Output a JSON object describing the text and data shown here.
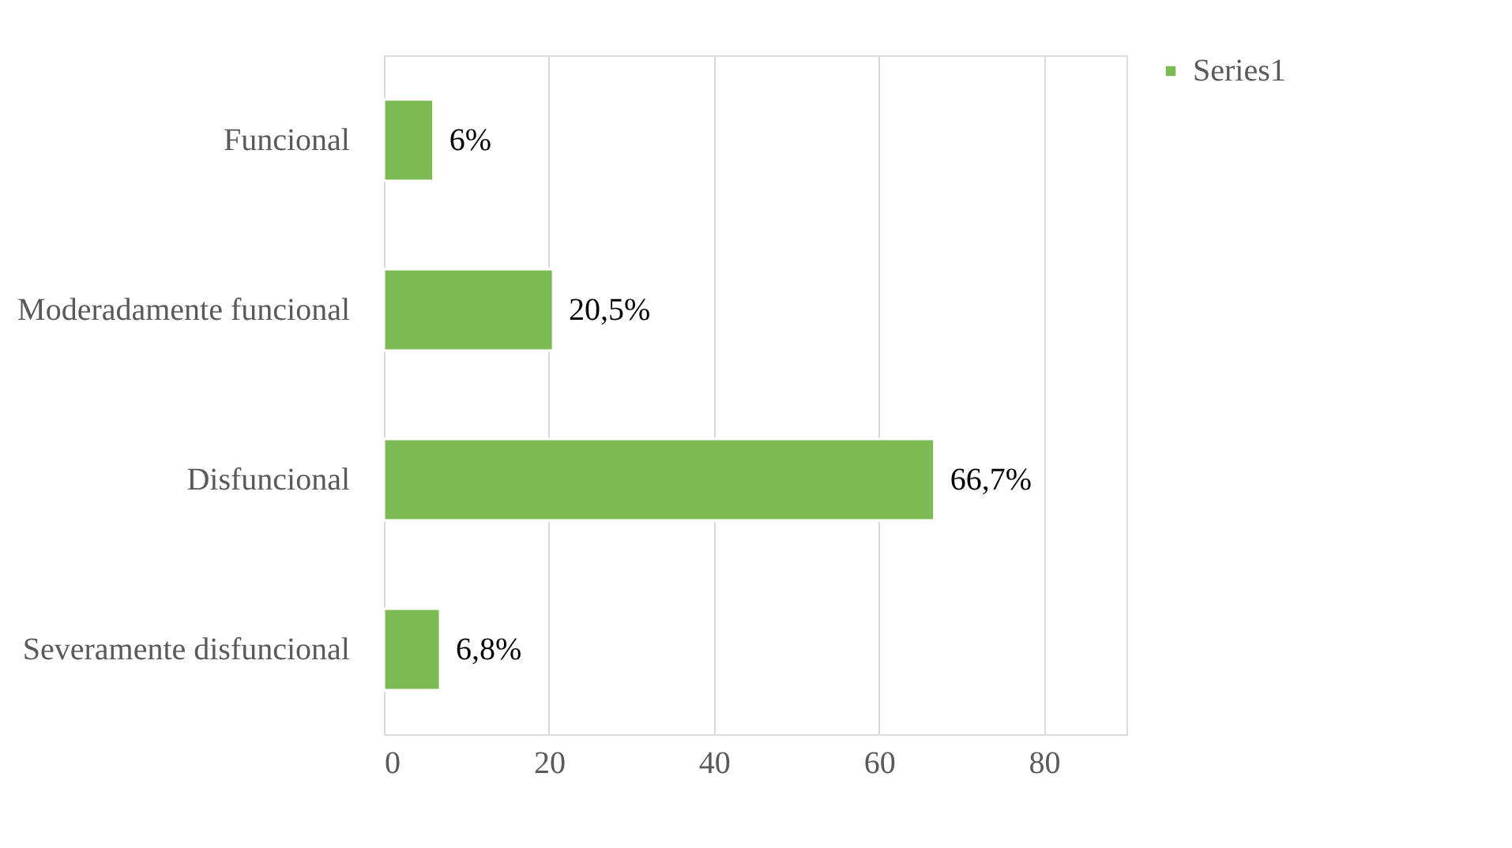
{
  "chart_data": {
    "type": "bar",
    "orientation": "horizontal",
    "categories": [
      "Funcional",
      "Moderadamente funcional",
      "Disfuncional",
      "Severamente disfuncional"
    ],
    "series": [
      {
        "name": "Series1",
        "color": "#7dbb55",
        "values": [
          6,
          20.5,
          66.7,
          6.8
        ],
        "value_labels": [
          "6%",
          "20,5%",
          "66,7%",
          "6,8%"
        ]
      }
    ],
    "xlim": [
      0,
      90
    ],
    "xticks": [
      0,
      20,
      40,
      60,
      80
    ],
    "grid": "x",
    "legend": "right"
  }
}
